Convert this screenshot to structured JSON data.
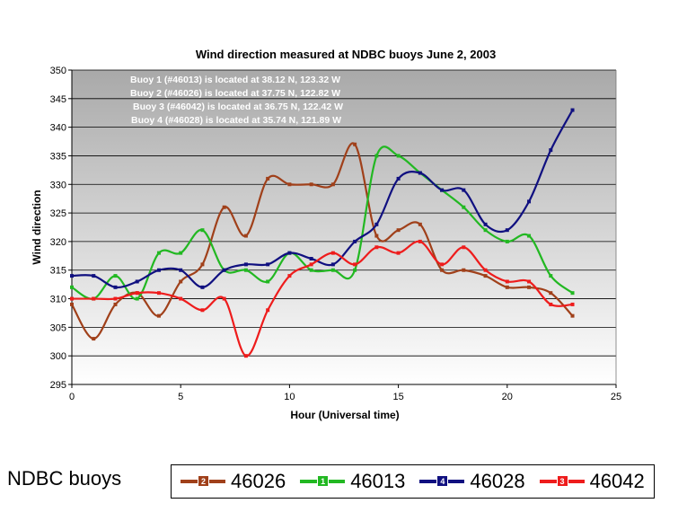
{
  "chart_data": {
    "type": "line",
    "title": "Wind direction measured at NDBC buoys June 2, 2003",
    "xlabel": "Hour (Universal time)",
    "ylabel": "Wind direction",
    "xlim": [
      0,
      25
    ],
    "ylim": [
      295,
      350
    ],
    "xticks": [
      0,
      5,
      10,
      15,
      20,
      25
    ],
    "yticks": [
      295,
      300,
      305,
      310,
      315,
      320,
      325,
      330,
      335,
      340,
      345,
      350
    ],
    "grid": true,
    "annotations": [
      "Buoy 1 (#46013) is located at 38.12 N, 123.32 W",
      "Buoy 2 (#46026) is located at 37.75 N, 122.82 W",
      "Buoy 3 (#46042) is located at 36.75 N, 122.42 W",
      "Buoy 4 (#46028) is located at 35.74 N, 121.89 W"
    ],
    "x": [
      0,
      1,
      2,
      3,
      4,
      5,
      6,
      7,
      8,
      9,
      10,
      11,
      12,
      13,
      14,
      15,
      16,
      17,
      18,
      19,
      20,
      21,
      22,
      23
    ],
    "series": [
      {
        "name": "46026",
        "badge": "2",
        "color": "#a0401a",
        "values": [
          309,
          303,
          309,
          311,
          307,
          313,
          316,
          326,
          321,
          331,
          330,
          330,
          330,
          337,
          321,
          322,
          323,
          315,
          315,
          314,
          312,
          312,
          311,
          307
        ]
      },
      {
        "name": "46013",
        "badge": "1",
        "color": "#22b822",
        "values": [
          312,
          310,
          314,
          310,
          318,
          318,
          322,
          315,
          315,
          313,
          318,
          315,
          315,
          315,
          335,
          335,
          332,
          329,
          326,
          322,
          320,
          321,
          314,
          311
        ]
      },
      {
        "name": "46028",
        "badge": "4",
        "color": "#101080",
        "values": [
          314,
          314,
          312,
          313,
          315,
          315,
          312,
          315,
          316,
          316,
          318,
          317,
          316,
          320,
          323,
          331,
          332,
          329,
          329,
          323,
          322,
          327,
          336,
          343
        ]
      },
      {
        "name": "46042",
        "badge": "3",
        "color": "#ee1c1c",
        "values": [
          310,
          310,
          310,
          311,
          311,
          310,
          308,
          310,
          300,
          308,
          314,
          316,
          318,
          316,
          319,
          318,
          320,
          316,
          319,
          315,
          313,
          313,
          309,
          309
        ]
      }
    ],
    "legend_position": "bottom",
    "legend_title": "NDBC buoys"
  }
}
